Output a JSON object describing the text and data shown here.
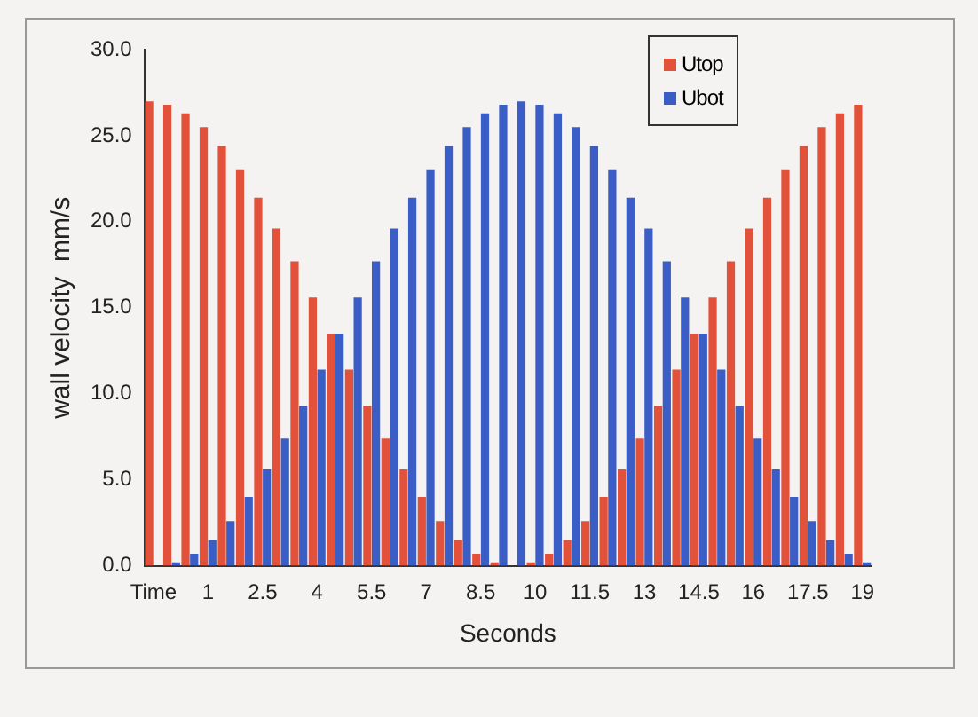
{
  "chart_data": {
    "type": "bar",
    "xlabel": "Seconds",
    "ylabel": "wall velocity  mm/s",
    "categories": [
      "Time",
      null,
      null,
      "1",
      null,
      null,
      "2.5",
      null,
      null,
      "4",
      null,
      null,
      "5.5",
      null,
      null,
      "7",
      null,
      null,
      "8.5",
      null,
      null,
      "10",
      null,
      null,
      "11.5",
      null,
      null,
      "13",
      null,
      null,
      "14.5",
      null,
      null,
      "16",
      null,
      null,
      "17.5",
      null,
      null,
      "19"
    ],
    "series": [
      {
        "name": "Utop",
        "color": "#e2513a",
        "values": [
          27,
          26.8,
          26.3,
          25.5,
          24.4,
          23,
          21.4,
          19.6,
          17.7,
          15.6,
          13.5,
          11.4,
          9.3,
          7.4,
          5.6,
          4,
          2.6,
          1.5,
          0.7,
          0.2,
          0,
          0.2,
          0.7,
          1.5,
          2.6,
          4,
          5.6,
          7.4,
          9.3,
          11.4,
          13.5,
          15.6,
          17.7,
          19.6,
          21.4,
          23,
          24.4,
          25.5,
          26.3,
          26.8
        ]
      },
      {
        "name": "Ubot",
        "color": "#3b5ec6",
        "values": [
          0,
          0.2,
          0.7,
          1.5,
          2.6,
          4,
          5.6,
          7.4,
          9.3,
          11.4,
          13.5,
          15.6,
          17.7,
          19.6,
          21.4,
          23,
          24.4,
          25.5,
          26.3,
          26.8,
          27,
          26.8,
          26.3,
          25.5,
          24.4,
          23,
          21.4,
          19.6,
          17.7,
          15.6,
          13.5,
          11.4,
          9.3,
          7.4,
          5.6,
          4,
          2.6,
          1.5,
          0.7,
          0.2
        ]
      }
    ],
    "ylim": [
      0,
      30
    ],
    "yticks": [
      {
        "value": 0,
        "label": "0.0"
      },
      {
        "value": 5,
        "label": "5.0"
      },
      {
        "value": 10,
        "label": "10.0"
      },
      {
        "value": 15,
        "label": "15.0"
      },
      {
        "value": 20,
        "label": "20.0"
      },
      {
        "value": 25,
        "label": "25.0"
      },
      {
        "value": 30,
        "label": "30.0"
      }
    ],
    "grid": false,
    "legend": "top right"
  }
}
